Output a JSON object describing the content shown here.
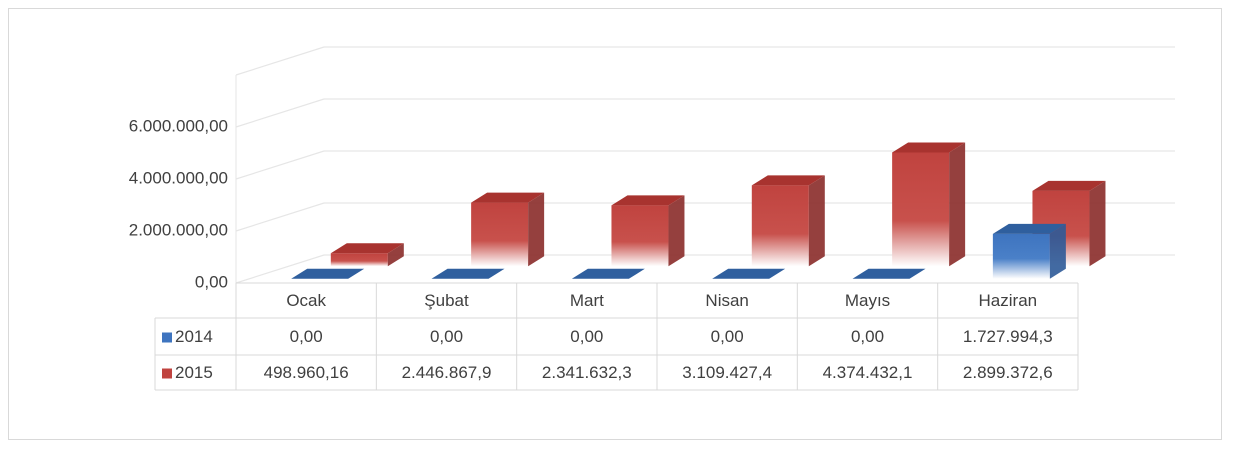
{
  "chart_data": {
    "type": "bar3d",
    "categories": [
      "Ocak",
      "Şubat",
      "Mart",
      "Nisan",
      "Mayıs",
      "Haziran"
    ],
    "series": [
      {
        "name": "2014",
        "color": "#3e74bf",
        "values": [
          0,
          0,
          0,
          0,
          0,
          1727994.3
        ],
        "value_labels": [
          "0,00",
          "0,00",
          "0,00",
          "0,00",
          "0,00",
          "1.727.994,3"
        ]
      },
      {
        "name": "2015",
        "color": "#c0433f",
        "values": [
          498960.16,
          2446867.9,
          2341632.3,
          3109427.4,
          4374432.1,
          2899372.6
        ],
        "value_labels": [
          "498.960,16",
          "2.446.867,9",
          "2.341.632,3",
          "3.109.427,4",
          "4.374.432,1",
          "2.899.372,6"
        ]
      }
    ],
    "ylim": [
      0,
      8000000
    ],
    "yticks": [
      {
        "value": 0,
        "label": "0,00"
      },
      {
        "value": 2000000,
        "label": "2.000.000,00"
      },
      {
        "value": 4000000,
        "label": "4.000.000,00"
      },
      {
        "value": 6000000,
        "label": "6.000.000,00"
      }
    ],
    "grid": true,
    "data_table": true
  }
}
